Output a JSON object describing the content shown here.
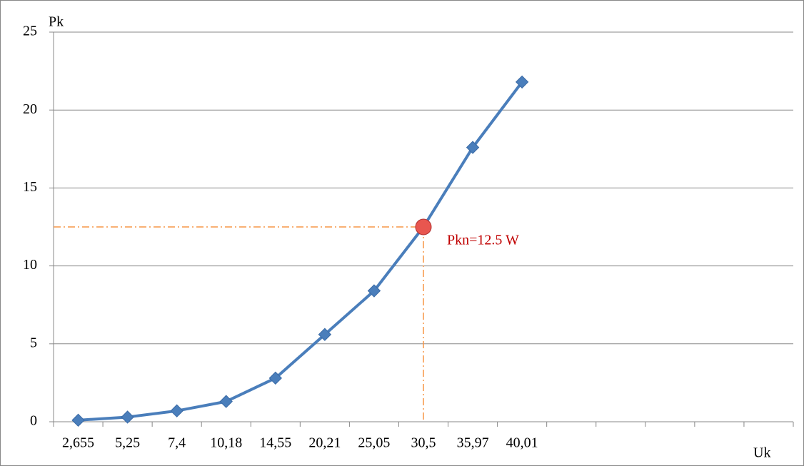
{
  "chart_data": {
    "type": "line",
    "y_label": "Pk",
    "x_label": "Uk",
    "categories": [
      "2,655",
      "5,25",
      "7,4",
      "10,18",
      "14,55",
      "20,21",
      "25,05",
      "30,5",
      "35,97",
      "40,01",
      null,
      null,
      null,
      null,
      null
    ],
    "series": [
      {
        "color": "#4a7ebb",
        "values": [
          0.1,
          0.3,
          0.7,
          1.3,
          2.8,
          5.6,
          8.4,
          12.5,
          17.6,
          21.8,
          null,
          null,
          null,
          null,
          null
        ]
      }
    ],
    "ylim": [
      0,
      25
    ],
    "yticks": [
      0,
      5,
      10,
      15,
      20,
      25
    ],
    "grid": true,
    "highlight": {
      "index": 7,
      "label": "Pkn=12.5 W",
      "color": "#c00000",
      "guide_color": "#f79646"
    }
  }
}
